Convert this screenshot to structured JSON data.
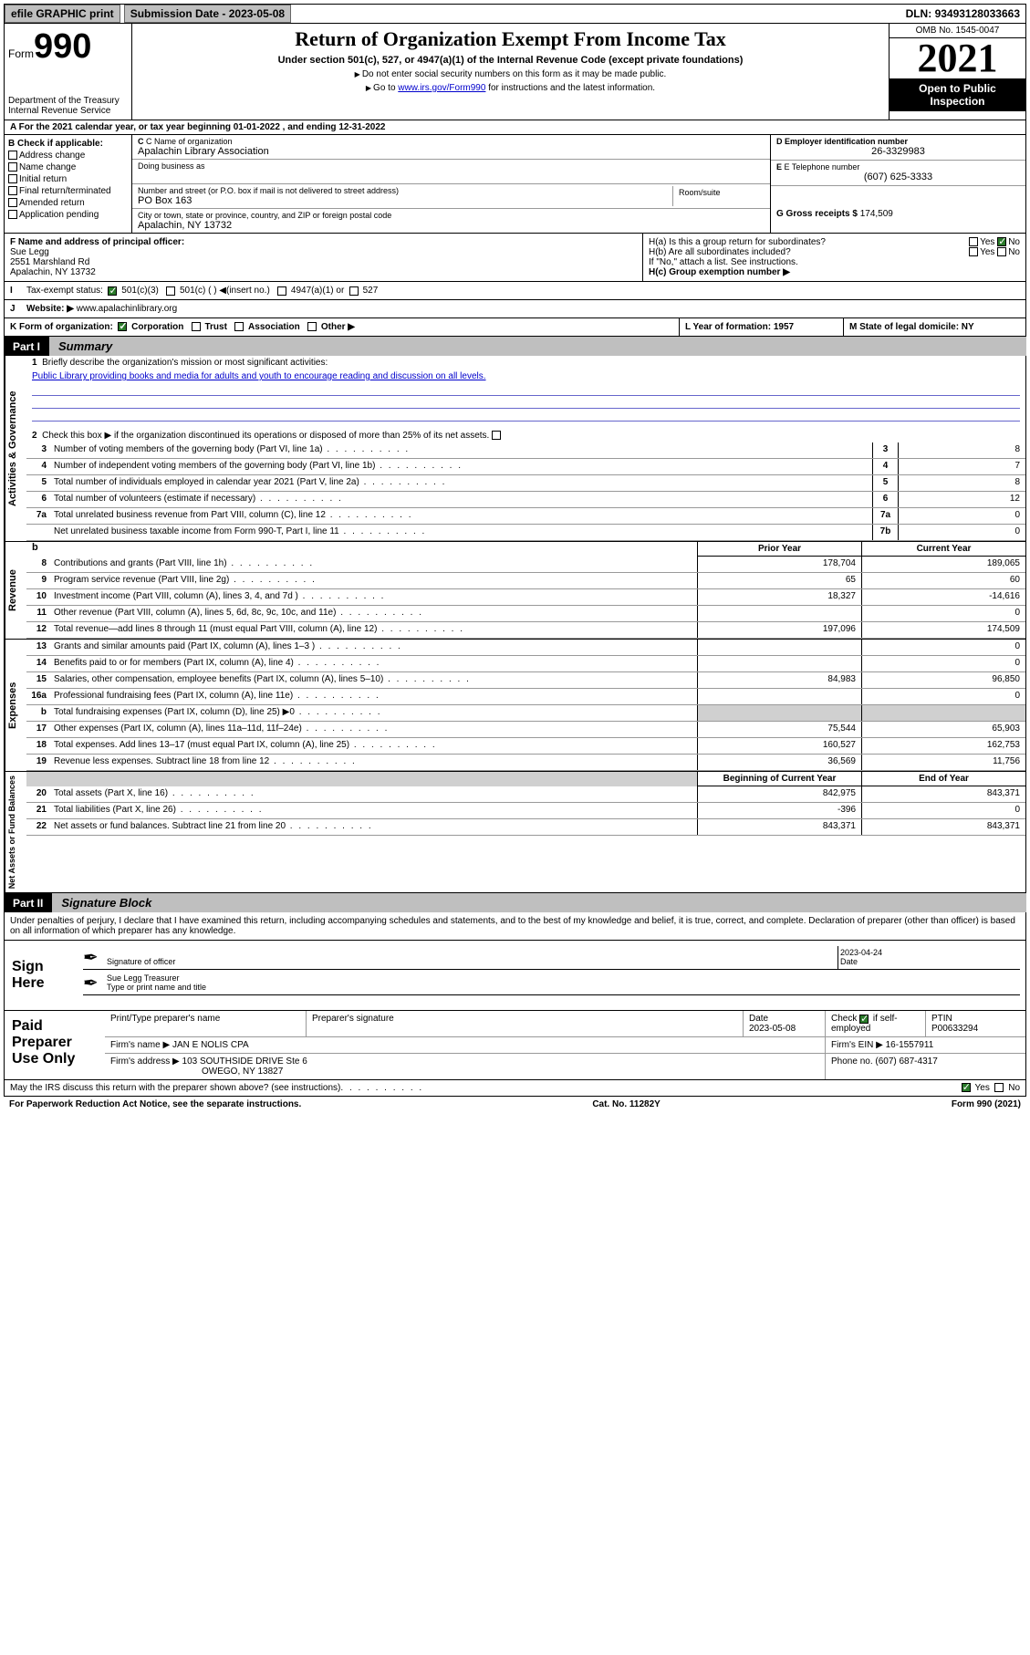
{
  "topbar": {
    "efile": "efile GRAPHIC print",
    "submission_label": "Submission Date - ",
    "submission_date": "2023-05-08",
    "dln_label": "DLN: ",
    "dln": "93493128033663"
  },
  "header": {
    "form_label": "Form",
    "form_number": "990",
    "dept": "Department of the Treasury\nInternal Revenue Service",
    "title": "Return of Organization Exempt From Income Tax",
    "subtitle": "Under section 501(c), 527, or 4947(a)(1) of the Internal Revenue Code (except private foundations)",
    "note1": "Do not enter social security numbers on this form as it may be made public.",
    "note2_pre": "Go to ",
    "note2_link": "www.irs.gov/Form990",
    "note2_post": " for instructions and the latest information.",
    "omb": "OMB No. 1545-0047",
    "year": "2021",
    "inspect": "Open to Public Inspection"
  },
  "row_a": "A For the 2021 calendar year, or tax year beginning 01-01-2022   , and ending 12-31-2022",
  "section_b": {
    "label": "B Check if applicable:",
    "items": [
      "Address change",
      "Name change",
      "Initial return",
      "Final return/terminated",
      "Amended return",
      "Application pending"
    ]
  },
  "section_c": {
    "name_label": "C Name of organization",
    "name": "Apalachin Library Association",
    "dba_label": "Doing business as",
    "addr_label": "Number and street (or P.O. box if mail is not delivered to street address)",
    "room_label": "Room/suite",
    "addr": "PO Box 163",
    "city_label": "City or town, state or province, country, and ZIP or foreign postal code",
    "city": "Apalachin, NY  13732"
  },
  "section_d": {
    "label": "D Employer identification number",
    "val": "26-3329983"
  },
  "section_e": {
    "label": "E Telephone number",
    "val": "(607) 625-3333"
  },
  "section_g": {
    "label": "G Gross receipts $ ",
    "val": "174,509"
  },
  "section_f": {
    "label": "F  Name and address of principal officer:",
    "name": "Sue Legg",
    "addr1": "2551 Marshland Rd",
    "addr2": "Apalachin, NY  13732"
  },
  "section_h": {
    "ha": "H(a)  Is this a group return for subordinates?",
    "ha_no": true,
    "hb": "H(b)  Are all subordinates included?",
    "hb_note": "If \"No,\" attach a list. See instructions.",
    "hc": "H(c)  Group exemption number ▶"
  },
  "row_i": {
    "label": "I",
    "text": "Tax-exempt status:",
    "c501c3": true,
    "opts": [
      "501(c)(3)",
      "501(c) (  ) ◀(insert no.)",
      "4947(a)(1) or",
      "527"
    ]
  },
  "row_j": {
    "label": "J",
    "text": "Website: ▶",
    "val": "www.apalachinlibrary.org"
  },
  "row_k": {
    "label": "K Form of organization:",
    "corp": true,
    "opts": [
      "Corporation",
      "Trust",
      "Association",
      "Other ▶"
    ],
    "l": "L Year of formation: 1957",
    "m": "M State of legal domicile: NY"
  },
  "part1": {
    "tag": "Part I",
    "title": "Summary"
  },
  "summary": {
    "gov": {
      "label": "Activities & Governance",
      "q1": "Briefly describe the organization's mission or most significant activities:",
      "mission": "Public Library providing books and media for adults and youth to encourage reading and discussion on all levels.",
      "q2": "Check this box ▶       if the organization discontinued its operations or disposed of more than 25% of its net assets.",
      "rows": [
        {
          "n": "3",
          "t": "Number of voting members of the governing body (Part VI, line 1a)",
          "box": "3",
          "v": "8"
        },
        {
          "n": "4",
          "t": "Number of independent voting members of the governing body (Part VI, line 1b)",
          "box": "4",
          "v": "7"
        },
        {
          "n": "5",
          "t": "Total number of individuals employed in calendar year 2021 (Part V, line 2a)",
          "box": "5",
          "v": "8"
        },
        {
          "n": "6",
          "t": "Total number of volunteers (estimate if necessary)",
          "box": "6",
          "v": "12"
        },
        {
          "n": "7a",
          "t": "Total unrelated business revenue from Part VIII, column (C), line 12",
          "box": "7a",
          "v": "0"
        },
        {
          "n": "",
          "t": "Net unrelated business taxable income from Form 990-T, Part I, line 11",
          "box": "7b",
          "v": "0"
        }
      ]
    },
    "col_hdrs": {
      "b": "b",
      "py": "Prior Year",
      "cy": "Current Year",
      "boy": "Beginning of Current Year",
      "eoy": "End of Year"
    },
    "rev": {
      "label": "Revenue",
      "rows": [
        {
          "n": "8",
          "t": "Contributions and grants (Part VIII, line 1h)",
          "py": "178,704",
          "cy": "189,065"
        },
        {
          "n": "9",
          "t": "Program service revenue (Part VIII, line 2g)",
          "py": "65",
          "cy": "60"
        },
        {
          "n": "10",
          "t": "Investment income (Part VIII, column (A), lines 3, 4, and 7d )",
          "py": "18,327",
          "cy": "-14,616"
        },
        {
          "n": "11",
          "t": "Other revenue (Part VIII, column (A), lines 5, 6d, 8c, 9c, 10c, and 11e)",
          "py": "",
          "cy": "0"
        },
        {
          "n": "12",
          "t": "Total revenue—add lines 8 through 11 (must equal Part VIII, column (A), line 12)",
          "py": "197,096",
          "cy": "174,509"
        }
      ]
    },
    "exp": {
      "label": "Expenses",
      "rows": [
        {
          "n": "13",
          "t": "Grants and similar amounts paid (Part IX, column (A), lines 1–3 )",
          "py": "",
          "cy": "0"
        },
        {
          "n": "14",
          "t": "Benefits paid to or for members (Part IX, column (A), line 4)",
          "py": "",
          "cy": "0"
        },
        {
          "n": "15",
          "t": "Salaries, other compensation, employee benefits (Part IX, column (A), lines 5–10)",
          "py": "84,983",
          "cy": "96,850"
        },
        {
          "n": "16a",
          "t": "Professional fundraising fees (Part IX, column (A), line 11e)",
          "py": "",
          "cy": "0"
        },
        {
          "n": "b",
          "t": "Total fundraising expenses (Part IX, column (D), line 25) ▶0",
          "py": "GRAY",
          "cy": "GRAY"
        },
        {
          "n": "17",
          "t": "Other expenses (Part IX, column (A), lines 11a–11d, 11f–24e)",
          "py": "75,544",
          "cy": "65,903"
        },
        {
          "n": "18",
          "t": "Total expenses. Add lines 13–17 (must equal Part IX, column (A), line 25)",
          "py": "160,527",
          "cy": "162,753"
        },
        {
          "n": "19",
          "t": "Revenue less expenses. Subtract line 18 from line 12",
          "py": "36,569",
          "cy": "11,756"
        }
      ]
    },
    "net": {
      "label": "Net Assets or Fund Balances",
      "rows": [
        {
          "n": "20",
          "t": "Total assets (Part X, line 16)",
          "py": "842,975",
          "cy": "843,371"
        },
        {
          "n": "21",
          "t": "Total liabilities (Part X, line 26)",
          "py": "-396",
          "cy": "0"
        },
        {
          "n": "22",
          "t": "Net assets or fund balances. Subtract line 21 from line 20",
          "py": "843,371",
          "cy": "843,371"
        }
      ]
    }
  },
  "part2": {
    "tag": "Part II",
    "title": "Signature Block"
  },
  "sig": {
    "intro": "Under penalties of perjury, I declare that I have examined this return, including accompanying schedules and statements, and to the best of my knowledge and belief, it is true, correct, and complete. Declaration of preparer (other than officer) is based on all information of which preparer has any knowledge.",
    "sign_here": "Sign Here",
    "sig_of_officer": "Signature of officer",
    "date_label": "Date",
    "date": "2023-04-24",
    "name_title": "Sue Legg  Treasurer",
    "name_title_label": "Type or print name and title"
  },
  "paid": {
    "label": "Paid Preparer Use Only",
    "r1": {
      "c1": "Print/Type preparer's name",
      "c2": "Preparer's signature",
      "c3_label": "Date",
      "c3": "2023-05-08",
      "c4_label": "Check",
      "c4_text": "if self-employed",
      "c4_checked": true,
      "c5_label": "PTIN",
      "c5": "P00633294"
    },
    "r2": {
      "c1_label": "Firm's name    ▶ ",
      "c1": "JAN E NOLIS CPA",
      "c2_label": "Firm's EIN ▶ ",
      "c2": "16-1557911"
    },
    "r3": {
      "c1_label": "Firm's address ▶ ",
      "c1": "103 SOUTHSIDE DRIVE Ste 6",
      "c1b": "OWEGO, NY  13827",
      "c2_label": "Phone no. ",
      "c2": "(607) 687-4317"
    }
  },
  "footer": {
    "discuss": "May the IRS discuss this return with the preparer shown above? (see instructions)",
    "yes_checked": true,
    "paperwork": "For Paperwork Reduction Act Notice, see the separate instructions.",
    "cat": "Cat. No. 11282Y",
    "formref": "Form 990 (2021)"
  },
  "colors": {
    "black": "#000000",
    "gray_btn": "#bfbfbf",
    "gray_cell": "#d0d0d0",
    "link": "#0000cc",
    "green_check": "#2a7a2a"
  }
}
